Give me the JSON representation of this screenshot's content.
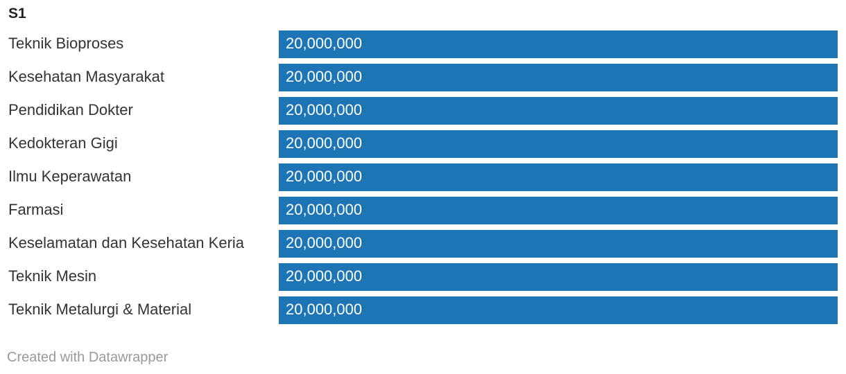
{
  "credit": "Created with Datawrapper",
  "colors": {
    "bar": "#1d75b5",
    "bar_label": "#ffffff",
    "text": "#333333",
    "credit": "#999999"
  },
  "chart_data": {
    "type": "bar",
    "orientation": "horizontal",
    "title": "S1",
    "xlabel": "",
    "ylabel": "",
    "xlim": [
      0,
      20000000
    ],
    "grid": false,
    "legend": "none",
    "categories": [
      "Teknik Bioproses",
      "Kesehatan Masyarakat",
      "Pendidikan Dokter",
      "Kedokteran Gigi",
      "Ilmu Keperawatan",
      "Farmasi",
      "Keselamatan dan Kesehatan Keria",
      "Teknik Mesin",
      "Teknik Metalurgi & Material"
    ],
    "values": [
      20000000,
      20000000,
      20000000,
      20000000,
      20000000,
      20000000,
      20000000,
      20000000,
      20000000
    ],
    "value_labels": [
      "20,000,000",
      "20,000,000",
      "20,000,000",
      "20,000,000",
      "20,000,000",
      "20,000,000",
      "20,000,000",
      "20,000,000",
      "20,000,000"
    ]
  }
}
